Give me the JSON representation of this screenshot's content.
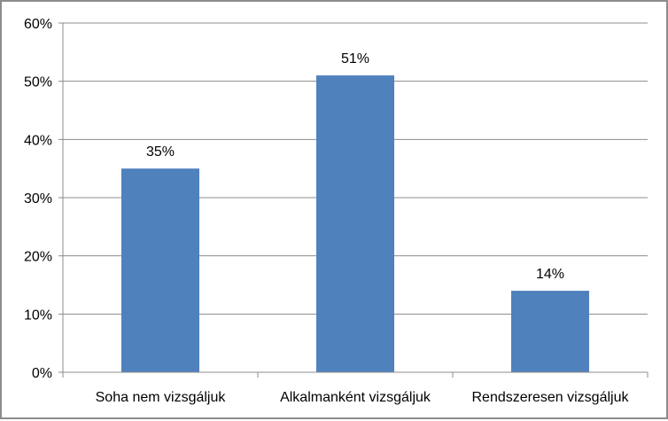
{
  "chart_data": {
    "type": "bar",
    "categories": [
      "Soha nem vizsgáljuk",
      "Alkalmanként vizsgáljuk",
      "Rendszeresen vizsgáljuk"
    ],
    "values": [
      35,
      51,
      14
    ],
    "data_labels": [
      "35%",
      "51%",
      "14%"
    ],
    "yticks": [
      "0%",
      "10%",
      "20%",
      "30%",
      "40%",
      "50%",
      "60%"
    ],
    "ylim": [
      0,
      60
    ],
    "grid": true,
    "legend": "none",
    "bar_color": "#4f81bd",
    "gridline_color": "#8c8c8c"
  }
}
